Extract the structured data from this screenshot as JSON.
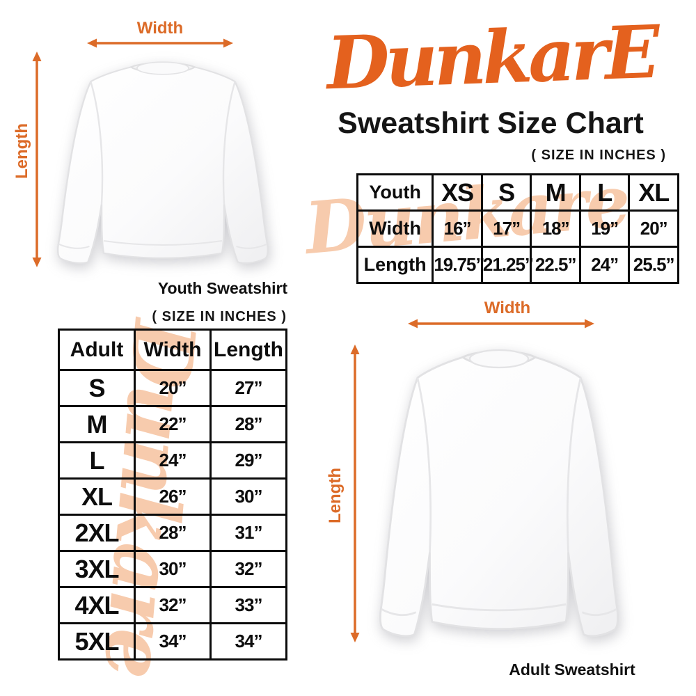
{
  "brand": {
    "logo_text": "DunkarE"
  },
  "header": {
    "title": "Sweatshirt Size Chart",
    "unit_note": "( SIZE IN INCHES )"
  },
  "watermark": {
    "text": "Dunkare"
  },
  "colors": {
    "accent_orange": "#E4611E",
    "arrow_orange": "#DC6B28",
    "watermark_peach": "#F7CBAD",
    "text_black": "#111111"
  },
  "youth_figure": {
    "width_label": "Width",
    "length_label": "Length",
    "caption": "Youth Sweatshirt"
  },
  "adult_figure": {
    "width_label": "Width",
    "length_label": "Length",
    "caption": "Adult Sweatshirt"
  },
  "youth_table": {
    "corner_label": "Youth",
    "sizes": [
      "XS",
      "S",
      "M",
      "L",
      "XL"
    ],
    "rows": [
      {
        "label": "Width",
        "values": [
          "16”",
          "17”",
          "18”",
          "19”",
          "20”"
        ]
      },
      {
        "label": "Length",
        "values": [
          "19.75”",
          "21.25”",
          "22.5”",
          "24”",
          "25.5”"
        ]
      }
    ]
  },
  "adult_table": {
    "unit_note": "( SIZE IN INCHES )",
    "headers": [
      "Adult",
      "Width",
      "Length"
    ],
    "rows": [
      [
        "S",
        "20”",
        "27”"
      ],
      [
        "M",
        "22”",
        "28”"
      ],
      [
        "L",
        "24”",
        "29”"
      ],
      [
        "XL",
        "26”",
        "30”"
      ],
      [
        "2XL",
        "28”",
        "31”"
      ],
      [
        "3XL",
        "30”",
        "32”"
      ],
      [
        "4XL",
        "32”",
        "33”"
      ],
      [
        "5XL",
        "34”",
        "34”"
      ]
    ]
  },
  "chart_data": [
    {
      "type": "table",
      "title": "Youth Sweatshirt Sizes (inches)",
      "columns": [
        "Youth",
        "XS",
        "S",
        "M",
        "L",
        "XL"
      ],
      "rows": [
        [
          "Width",
          "16",
          "17",
          "18",
          "19",
          "20"
        ],
        [
          "Length",
          "19.75",
          "21.25",
          "22.5",
          "24",
          "25.5"
        ]
      ]
    },
    {
      "type": "table",
      "title": "Adult Sweatshirt Sizes (inches)",
      "columns": [
        "Adult",
        "Width",
        "Length"
      ],
      "rows": [
        [
          "S",
          "20",
          "27"
        ],
        [
          "M",
          "22",
          "28"
        ],
        [
          "L",
          "24",
          "29"
        ],
        [
          "XL",
          "26",
          "30"
        ],
        [
          "2XL",
          "28",
          "31"
        ],
        [
          "3XL",
          "30",
          "32"
        ],
        [
          "4XL",
          "32",
          "33"
        ],
        [
          "5XL",
          "34",
          "34"
        ]
      ]
    }
  ]
}
